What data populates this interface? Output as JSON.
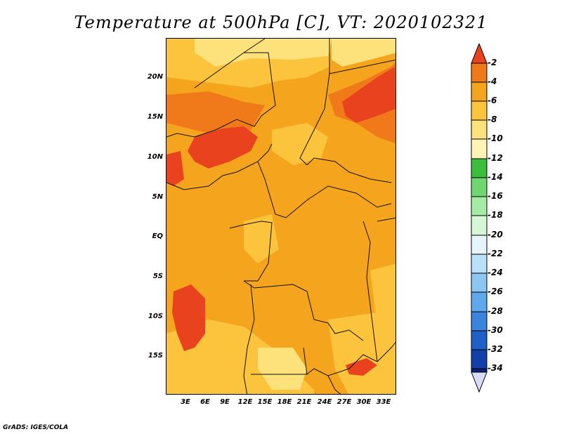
{
  "title": "Temperature at 500hPa [C], VT: 2020102321",
  "credit": "GrADS: IGES/COLA",
  "map": {
    "lat_labels": [
      "20N",
      "15N",
      "10N",
      "5N",
      "EQ",
      "5S",
      "10S",
      "15S"
    ],
    "lon_labels": [
      "3E",
      "6E",
      "9E",
      "12E",
      "15E",
      "18E",
      "21E",
      "24E",
      "27E",
      "30E",
      "33E"
    ]
  },
  "colorbar": {
    "labels": [
      "-2",
      "-4",
      "-6",
      "-8",
      "-10",
      "-12",
      "-14",
      "-16",
      "-18",
      "-20",
      "-22",
      "-24",
      "-26",
      "-28",
      "-30",
      "-32",
      "-34"
    ],
    "colors": [
      "#e8421e",
      "#f07a1a",
      "#f5a41e",
      "#fbc43c",
      "#fde17a",
      "#fff4b8",
      "#3cbd3c",
      "#70d770",
      "#a5eba5",
      "#d6f7d6",
      "#e6f5fc",
      "#b8e0f8",
      "#8cc6f2",
      "#5ea8eb",
      "#3a84e0",
      "#1f5fc8",
      "#1240a8",
      "#0c1f7a",
      "#d8dcf8"
    ]
  },
  "chart_data": {
    "type": "heatmap",
    "title": "Temperature at 500hPa [C], VT: 2020102321",
    "variable": "Temperature at 500hPa",
    "units": "C",
    "valid_time": "2020102321",
    "lat_ticks": [
      "20N",
      "15N",
      "10N",
      "5N",
      "EQ",
      "5S",
      "10S",
      "15S"
    ],
    "lon_ticks": [
      "3E",
      "6E",
      "9E",
      "12E",
      "15E",
      "18E",
      "21E",
      "24E",
      "27E",
      "30E",
      "33E"
    ],
    "color_levels": [
      -2,
      -4,
      -6,
      -8,
      -10,
      -12,
      -14,
      -16,
      -18,
      -20,
      -22,
      -24,
      -26,
      -28,
      -30,
      -32,
      -34
    ],
    "value_range_shown": [
      -10,
      -2
    ]
  }
}
